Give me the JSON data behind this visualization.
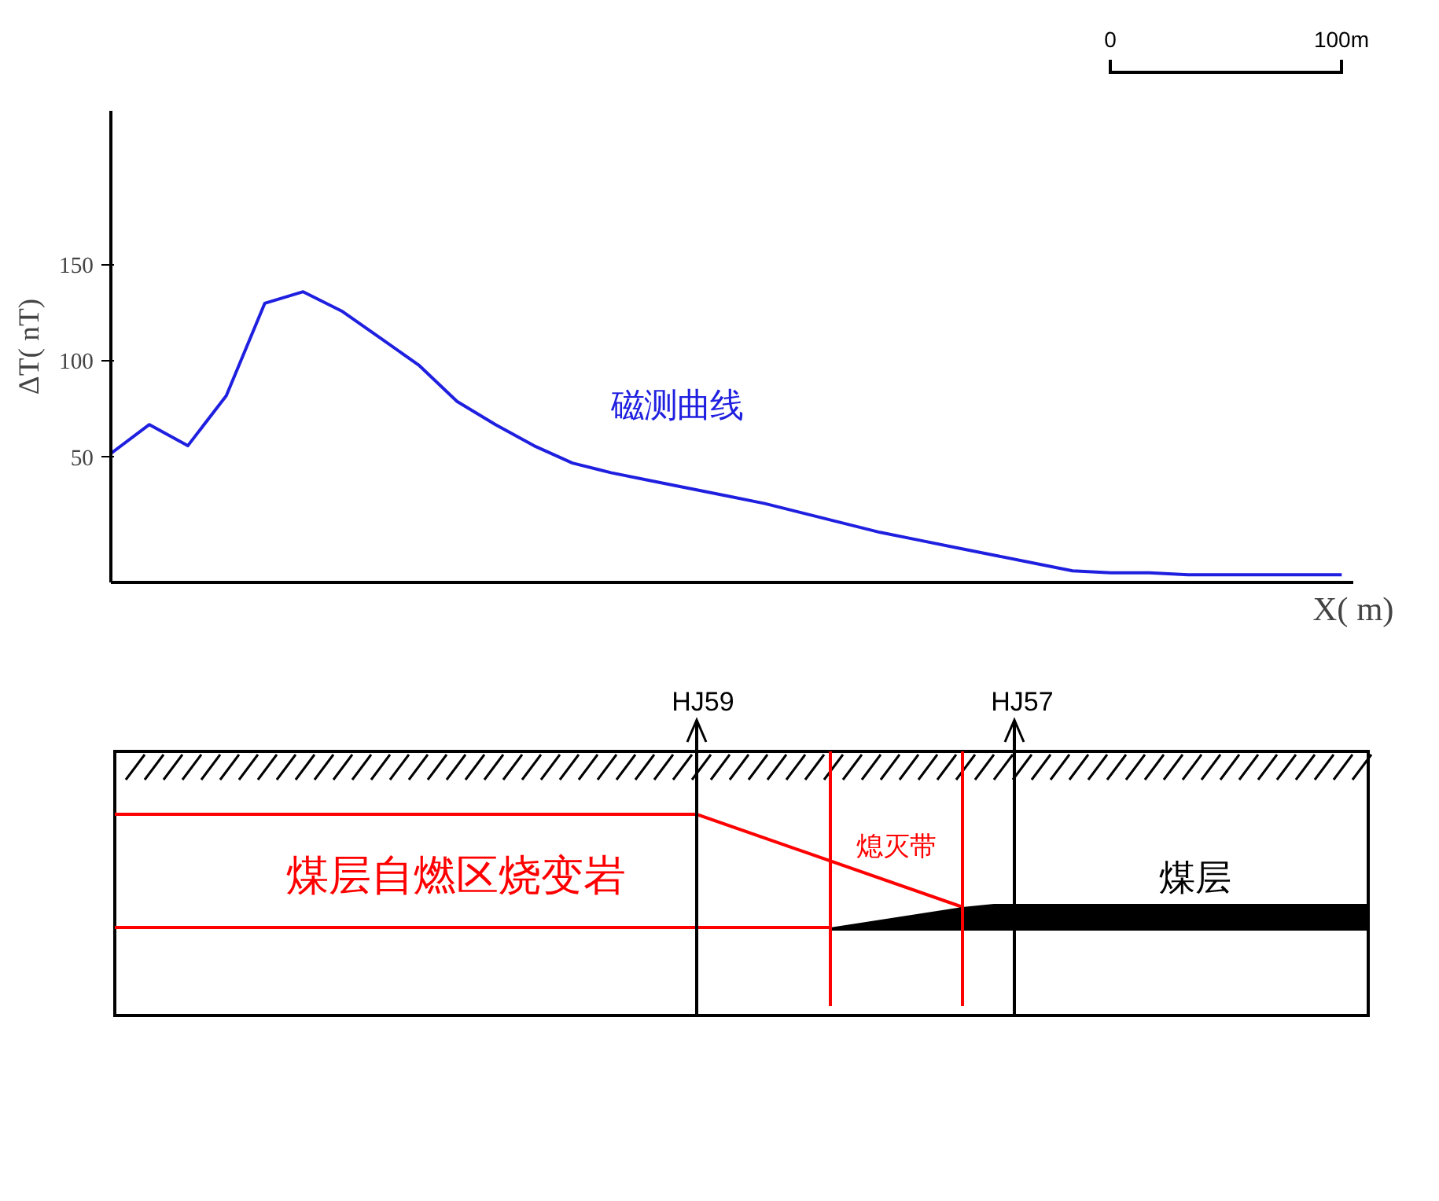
{
  "chart_data": [
    {
      "type": "line",
      "xlabel": "X( m)",
      "ylabel": "ΔT( nT)",
      "categories": [
        null,
        null,
        null,
        null,
        null,
        null,
        null,
        null,
        null,
        null,
        null,
        null,
        null,
        null,
        null,
        null,
        null,
        null,
        null,
        null,
        null,
        null,
        null,
        null,
        null,
        null,
        null,
        null,
        null,
        null,
        null,
        null,
        null
      ],
      "series": [
        {
          "name": "磁测曲线",
          "color": "#1f1fe0",
          "values": [
            52,
            67,
            56,
            82,
            130,
            136,
            126,
            112,
            98,
            79,
            67,
            56,
            47,
            42,
            38,
            34,
            30,
            26,
            21,
            16,
            11,
            7,
            3,
            -1,
            -5,
            -9,
            -10,
            -10,
            -11,
            -11,
            -11,
            -11,
            -11
          ]
        }
      ],
      "ylim": [
        -15,
        230
      ],
      "yticks": [
        50,
        100,
        150
      ],
      "tick_labels": "y",
      "grid": false,
      "legend": false,
      "marker": "none",
      "line_style": "solid",
      "annotations": [
        "0",
        "100m"
      ]
    },
    {
      "type": "other",
      "annotations": [
        "HJ59",
        "HJ57",
        "煤层自燃区烧变岩",
        "熄灭带",
        "煤层"
      ]
    }
  ]
}
